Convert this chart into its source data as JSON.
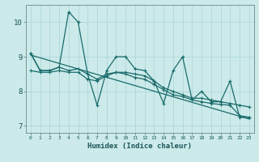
{
  "xlabel": "Humidex (Indice chaleur)",
  "background_color": "#cceaea",
  "grid_color": "#aad4d4",
  "line_color": "#1a6b6b",
  "x_data": [
    0,
    1,
    2,
    3,
    4,
    5,
    6,
    7,
    8,
    9,
    10,
    11,
    12,
    13,
    14,
    15,
    16,
    17,
    18,
    19,
    20,
    21,
    22,
    23
  ],
  "series1": [
    9.1,
    8.6,
    8.6,
    8.7,
    10.3,
    10.0,
    8.5,
    7.6,
    8.6,
    9.0,
    9.0,
    8.65,
    8.6,
    8.3,
    7.65,
    8.6,
    9.0,
    7.75,
    8.0,
    7.7,
    7.7,
    8.3,
    7.25,
    7.25
  ],
  "series2": [
    8.6,
    8.55,
    8.55,
    8.6,
    8.55,
    8.55,
    8.35,
    8.3,
    8.45,
    8.55,
    8.55,
    8.5,
    8.45,
    8.3,
    8.1,
    8.0,
    7.9,
    7.8,
    7.8,
    7.75,
    7.7,
    7.65,
    7.6,
    7.55
  ],
  "series3": [
    9.1,
    8.6,
    8.6,
    8.7,
    8.6,
    8.65,
    8.5,
    8.35,
    8.5,
    8.55,
    8.5,
    8.4,
    8.35,
    8.2,
    8.05,
    7.9,
    7.85,
    7.75,
    7.7,
    7.65,
    7.62,
    7.6,
    7.3,
    7.25
  ],
  "trend_x": [
    0,
    23
  ],
  "trend_y": [
    9.05,
    7.2
  ],
  "ylim": [
    6.8,
    10.5
  ],
  "xlim": [
    -0.5,
    23.5
  ],
  "yticks": [
    7,
    8,
    9,
    10
  ],
  "xticks": [
    0,
    1,
    2,
    3,
    4,
    5,
    6,
    7,
    8,
    9,
    10,
    11,
    12,
    13,
    14,
    15,
    16,
    17,
    18,
    19,
    20,
    21,
    22,
    23
  ]
}
